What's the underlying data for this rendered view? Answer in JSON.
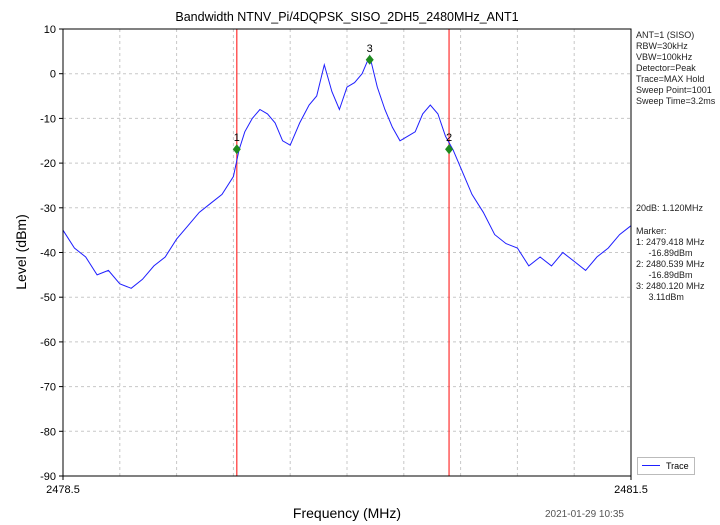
{
  "chart_data": {
    "type": "line",
    "title": "Bandwidth NTNV_Pi/4DQPSK_SISO_2DH5_2480MHz_ANT1",
    "xlabel": "Frequency (MHz)",
    "ylabel": "Level (dBm)",
    "xlim": [
      2478.5,
      2481.5
    ],
    "ylim": [
      -90,
      10
    ],
    "x_tick_labels": [
      "2478.5",
      "2481.5"
    ],
    "y_ticks": [
      10,
      0,
      -10,
      -20,
      -30,
      -40,
      -50,
      -60,
      -70,
      -80,
      -90
    ],
    "grid": true,
    "legend_position": "bottom-right",
    "series": [
      {
        "name": "Trace",
        "color": "#1f1fff",
        "x": [
          2478.5,
          2478.56,
          2478.62,
          2478.68,
          2478.74,
          2478.8,
          2478.86,
          2478.92,
          2478.98,
          2479.04,
          2479.1,
          2479.16,
          2479.22,
          2479.28,
          2479.34,
          2479.4,
          2479.43,
          2479.46,
          2479.5,
          2479.54,
          2479.58,
          2479.62,
          2479.66,
          2479.7,
          2479.75,
          2479.8,
          2479.84,
          2479.88,
          2479.92,
          2479.96,
          2480.0,
          2480.04,
          2480.08,
          2480.12,
          2480.16,
          2480.2,
          2480.24,
          2480.28,
          2480.32,
          2480.36,
          2480.4,
          2480.44,
          2480.48,
          2480.52,
          2480.56,
          2480.6,
          2480.66,
          2480.72,
          2480.78,
          2480.84,
          2480.9,
          2480.96,
          2481.02,
          2481.08,
          2481.14,
          2481.2,
          2481.26,
          2481.32,
          2481.38,
          2481.44,
          2481.5
        ],
        "y": [
          -35,
          -39,
          -41,
          -45,
          -44,
          -47,
          -48,
          -46,
          -43,
          -41,
          -37,
          -34,
          -31,
          -29,
          -27,
          -23,
          -17,
          -13,
          -10,
          -8,
          -9,
          -11,
          -15,
          -16,
          -11,
          -7,
          -5,
          2,
          -4,
          -8,
          -3,
          -2,
          0,
          4,
          -3,
          -8,
          -12,
          -15,
          -14,
          -13,
          -9,
          -7,
          -9,
          -14,
          -17,
          -21,
          -27,
          -31,
          -36,
          -38,
          -39,
          -43,
          -41,
          -43,
          -40,
          -42,
          -44,
          -41,
          -39,
          -36,
          -34
        ]
      }
    ],
    "vertical_lines": [
      2479.418,
      2480.539
    ],
    "markers": [
      {
        "label": "1",
        "x": 2479.418,
        "y": -16.89
      },
      {
        "label": "2",
        "x": 2480.539,
        "y": -16.89
      },
      {
        "label": "3",
        "x": 2480.12,
        "y": 3.11
      }
    ]
  },
  "settings_lines": [
    "ANT=1 (SISO)",
    "RBW=30kHz",
    "VBW=100kHz",
    "Detector=Peak",
    "Trace=MAX Hold",
    "Sweep Point=1001",
    "Sweep Time=3.2ms"
  ],
  "bandwidth_text": "20dB: 1.120MHz",
  "marker_text_lines": [
    "Marker:",
    "1: 2479.418 MHz",
    "     -16.89dBm",
    "2: 2480.539 MHz",
    "     -16.89dBm",
    "3: 2480.120 MHz",
    "     3.11dBm"
  ],
  "legend_label": "Trace",
  "timestamp": "2021-01-29 10:35",
  "colors": {
    "trace": "#1f1fff",
    "marker_line": "#ff3030",
    "marker_point": "#1e8a1e",
    "grid": "#c8c8c8"
  }
}
